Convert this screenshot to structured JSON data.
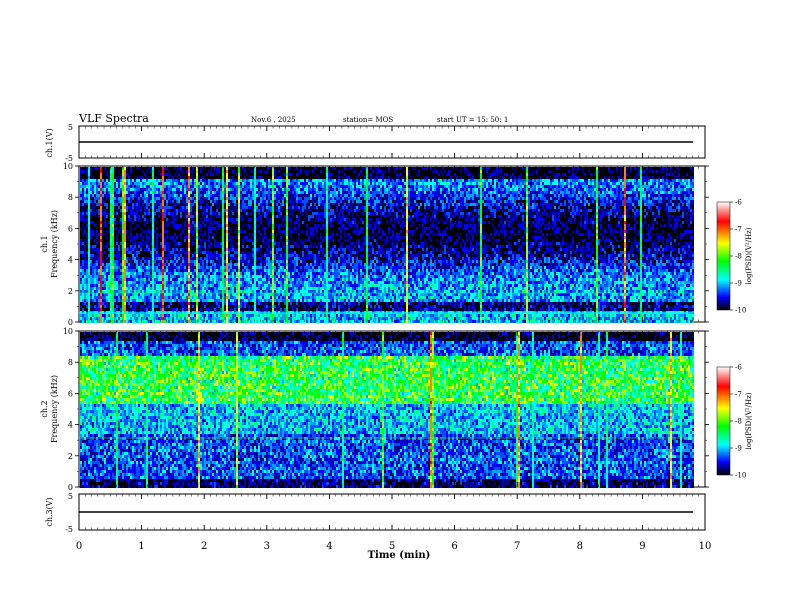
{
  "header": {
    "title": "VLF Spectra",
    "date": "Nov.6  , 2025",
    "station": "station= MOS",
    "start": "start  UT =   15: 50: 1"
  },
  "chart_data": [
    {
      "type": "line",
      "name": "ch1-waveform",
      "ylabel": "ch.1(V)",
      "ylim": [
        -5,
        5
      ],
      "yticks": [
        "5",
        "-5"
      ],
      "level": 0
    },
    {
      "type": "heatmap",
      "name": "ch1-spectrogram",
      "ylabel_channel": "ch.1",
      "ylabel": "Frequency  (kHz)",
      "ylim": [
        0,
        10
      ],
      "yticks": [
        "0",
        "2",
        "4",
        "6",
        "8",
        "10"
      ],
      "colorbar": {
        "label": "log(PSD)(V²/Hz)",
        "range": [
          -10,
          -6
        ],
        "ticks": [
          "-6",
          "-7",
          "-8",
          "-9",
          "-10"
        ],
        "colors": [
          "#ffffff",
          "#ff0000",
          "#ffff00",
          "#00ff00",
          "#00ffff",
          "#0000ff",
          "#000000"
        ]
      }
    },
    {
      "type": "heatmap",
      "name": "ch2-spectrogram",
      "ylabel_channel": "ch.2",
      "ylabel": "Frequency  (kHz)",
      "ylim": [
        0,
        10
      ],
      "yticks": [
        "0",
        "2",
        "4",
        "6",
        "8",
        "10"
      ],
      "colorbar": {
        "label": "log(PSD)(V²/Hz)",
        "range": [
          -10,
          -6
        ],
        "ticks": [
          "-6",
          "-7",
          "-8",
          "-9",
          "-10"
        ],
        "colors": [
          "#ffffff",
          "#ff0000",
          "#ffff00",
          "#00ff00",
          "#00ffff",
          "#0000ff",
          "#000000"
        ]
      }
    },
    {
      "type": "line",
      "name": "ch3-waveform",
      "ylabel": "ch.3(V)",
      "ylim": [
        -5,
        5
      ],
      "yticks": [
        "5",
        "-5"
      ],
      "level": 0
    }
  ],
  "xaxis": {
    "label": "Time  (min)",
    "range": [
      0,
      10
    ],
    "ticks": [
      "0",
      "1",
      "2",
      "3",
      "4",
      "5",
      "6",
      "7",
      "8",
      "9",
      "10"
    ]
  }
}
